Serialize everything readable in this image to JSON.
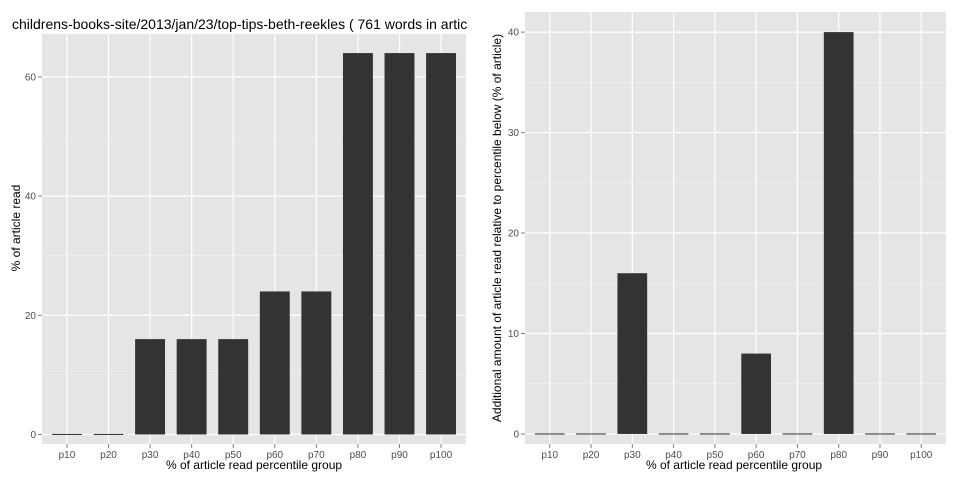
{
  "colors": {
    "panel_background": "#e5e5e5",
    "major_grid": "#ffffff",
    "minor_grid": "#f2f2f2",
    "bar_fill": "#333333",
    "tick_text": "#4d4d4d"
  },
  "chart_data": [
    {
      "type": "bar",
      "title": "childrens-books-site/2013/jan/23/top-tips-beth-reekles ( 761 words in artic",
      "xlabel": "% of article read percentile group",
      "ylabel": "% of article read",
      "categories": [
        "p10",
        "p20",
        "p30",
        "p40",
        "p50",
        "p60",
        "p70",
        "p80",
        "p90",
        "p100"
      ],
      "values": [
        0,
        0,
        16,
        16,
        16,
        24,
        24,
        64,
        64,
        64
      ],
      "ylim": [
        -1.6,
        67.2
      ],
      "yticks": [
        0,
        20,
        40,
        60
      ],
      "grid": true,
      "legend": "none"
    },
    {
      "type": "bar",
      "title": "",
      "xlabel": "% of article read percentile group",
      "ylabel": "Additional amount of article read relative to percentile below (% of article)",
      "categories": [
        "p10",
        "p20",
        "p30",
        "p40",
        "p50",
        "p60",
        "p70",
        "p80",
        "p90",
        "p100"
      ],
      "values": [
        0,
        0,
        16,
        0,
        0,
        8,
        0,
        40,
        0,
        0
      ],
      "ylim": [
        -1,
        42
      ],
      "yticks": [
        0,
        10,
        20,
        30,
        40
      ],
      "grid": true,
      "legend": "none"
    }
  ]
}
